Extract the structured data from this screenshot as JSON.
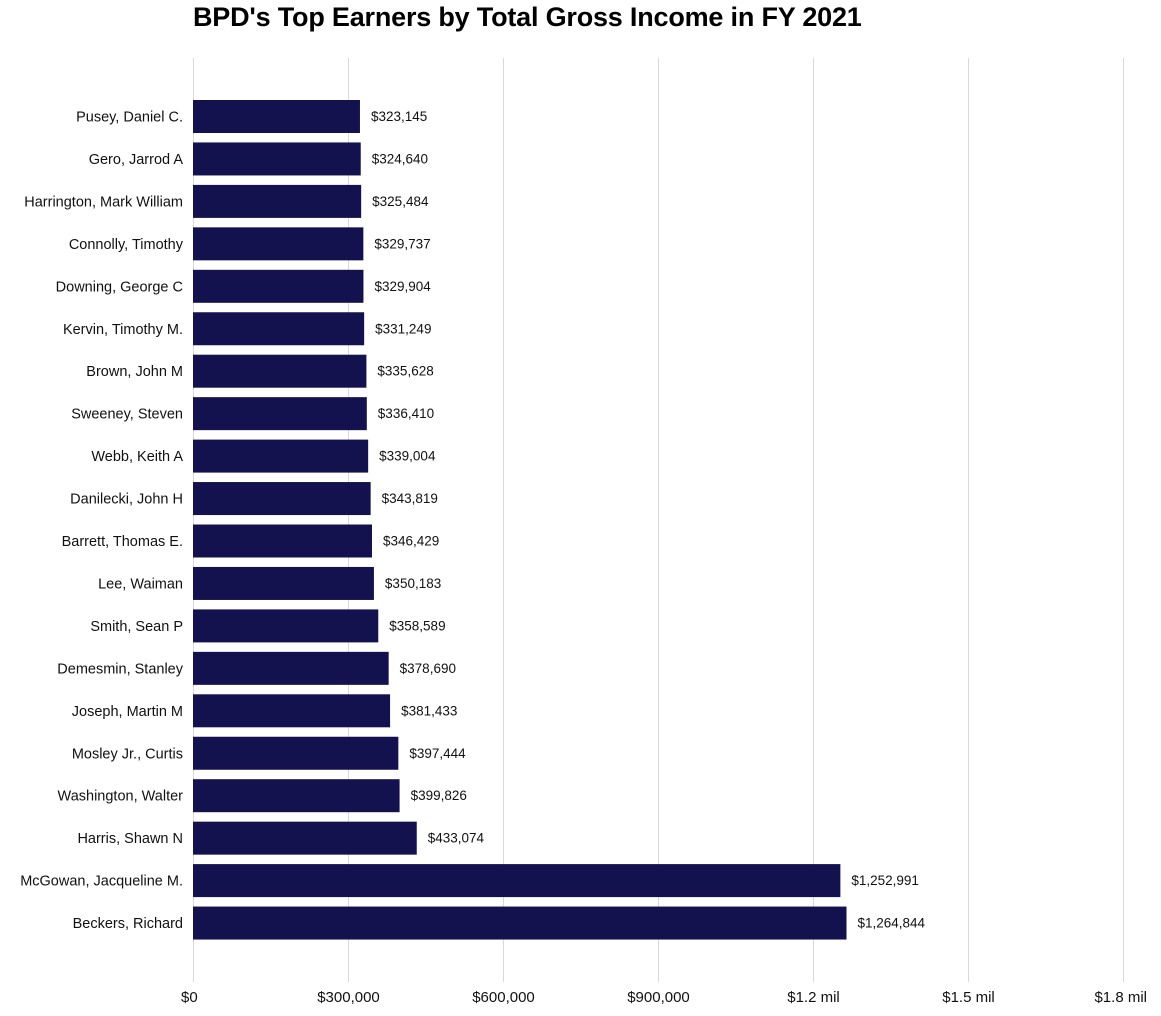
{
  "chart_data": {
    "type": "bar",
    "orientation": "horizontal",
    "title": "BPD's Top Earners by Total Gross Income in FY 2021",
    "xlabel": "",
    "ylabel": "",
    "xlim": [
      0,
      1800000
    ],
    "grid": true,
    "bar_color": "#14114f",
    "x_ticks": [
      {
        "value": 0,
        "label": "$0"
      },
      {
        "value": 300000,
        "label": "$300,000"
      },
      {
        "value": 600000,
        "label": "$600,000"
      },
      {
        "value": 900000,
        "label": "$900,000"
      },
      {
        "value": 1200000,
        "label": "$1.2 mil"
      },
      {
        "value": 1500000,
        "label": "$1.5 mil"
      },
      {
        "value": 1800000,
        "label": "$1.8 mil"
      }
    ],
    "categories": [
      "Pusey, Daniel C.",
      "Gero, Jarrod A",
      "Harrington, Mark William",
      "Connolly, Timothy",
      "Downing, George C",
      "Kervin, Timothy M.",
      "Brown, John M",
      "Sweeney, Steven",
      "Webb, Keith A",
      "Danilecki, John H",
      "Barrett, Thomas E.",
      "Lee, Waiman",
      "Smith, Sean P",
      "Demesmin, Stanley",
      "Joseph, Martin M",
      "Mosley Jr., Curtis",
      "Washington, Walter",
      "Harris, Shawn N",
      "McGowan, Jacqueline M.",
      "Beckers, Richard"
    ],
    "values": [
      323145,
      324640,
      325484,
      329737,
      329904,
      331249,
      335628,
      336410,
      339004,
      343819,
      346429,
      350183,
      358589,
      378690,
      381433,
      397444,
      399826,
      433074,
      1252991,
      1264844
    ],
    "value_labels": [
      "$323,145",
      "$324,640",
      "$325,484",
      "$329,737",
      "$329,904",
      "$331,249",
      "$335,628",
      "$336,410",
      "$339,004",
      "$343,819",
      "$346,429",
      "$350,183",
      "$358,589",
      "$378,690",
      "$381,433",
      "$397,444",
      "$399,826",
      "$433,074",
      "$1,252,991",
      "$1,264,844"
    ]
  }
}
